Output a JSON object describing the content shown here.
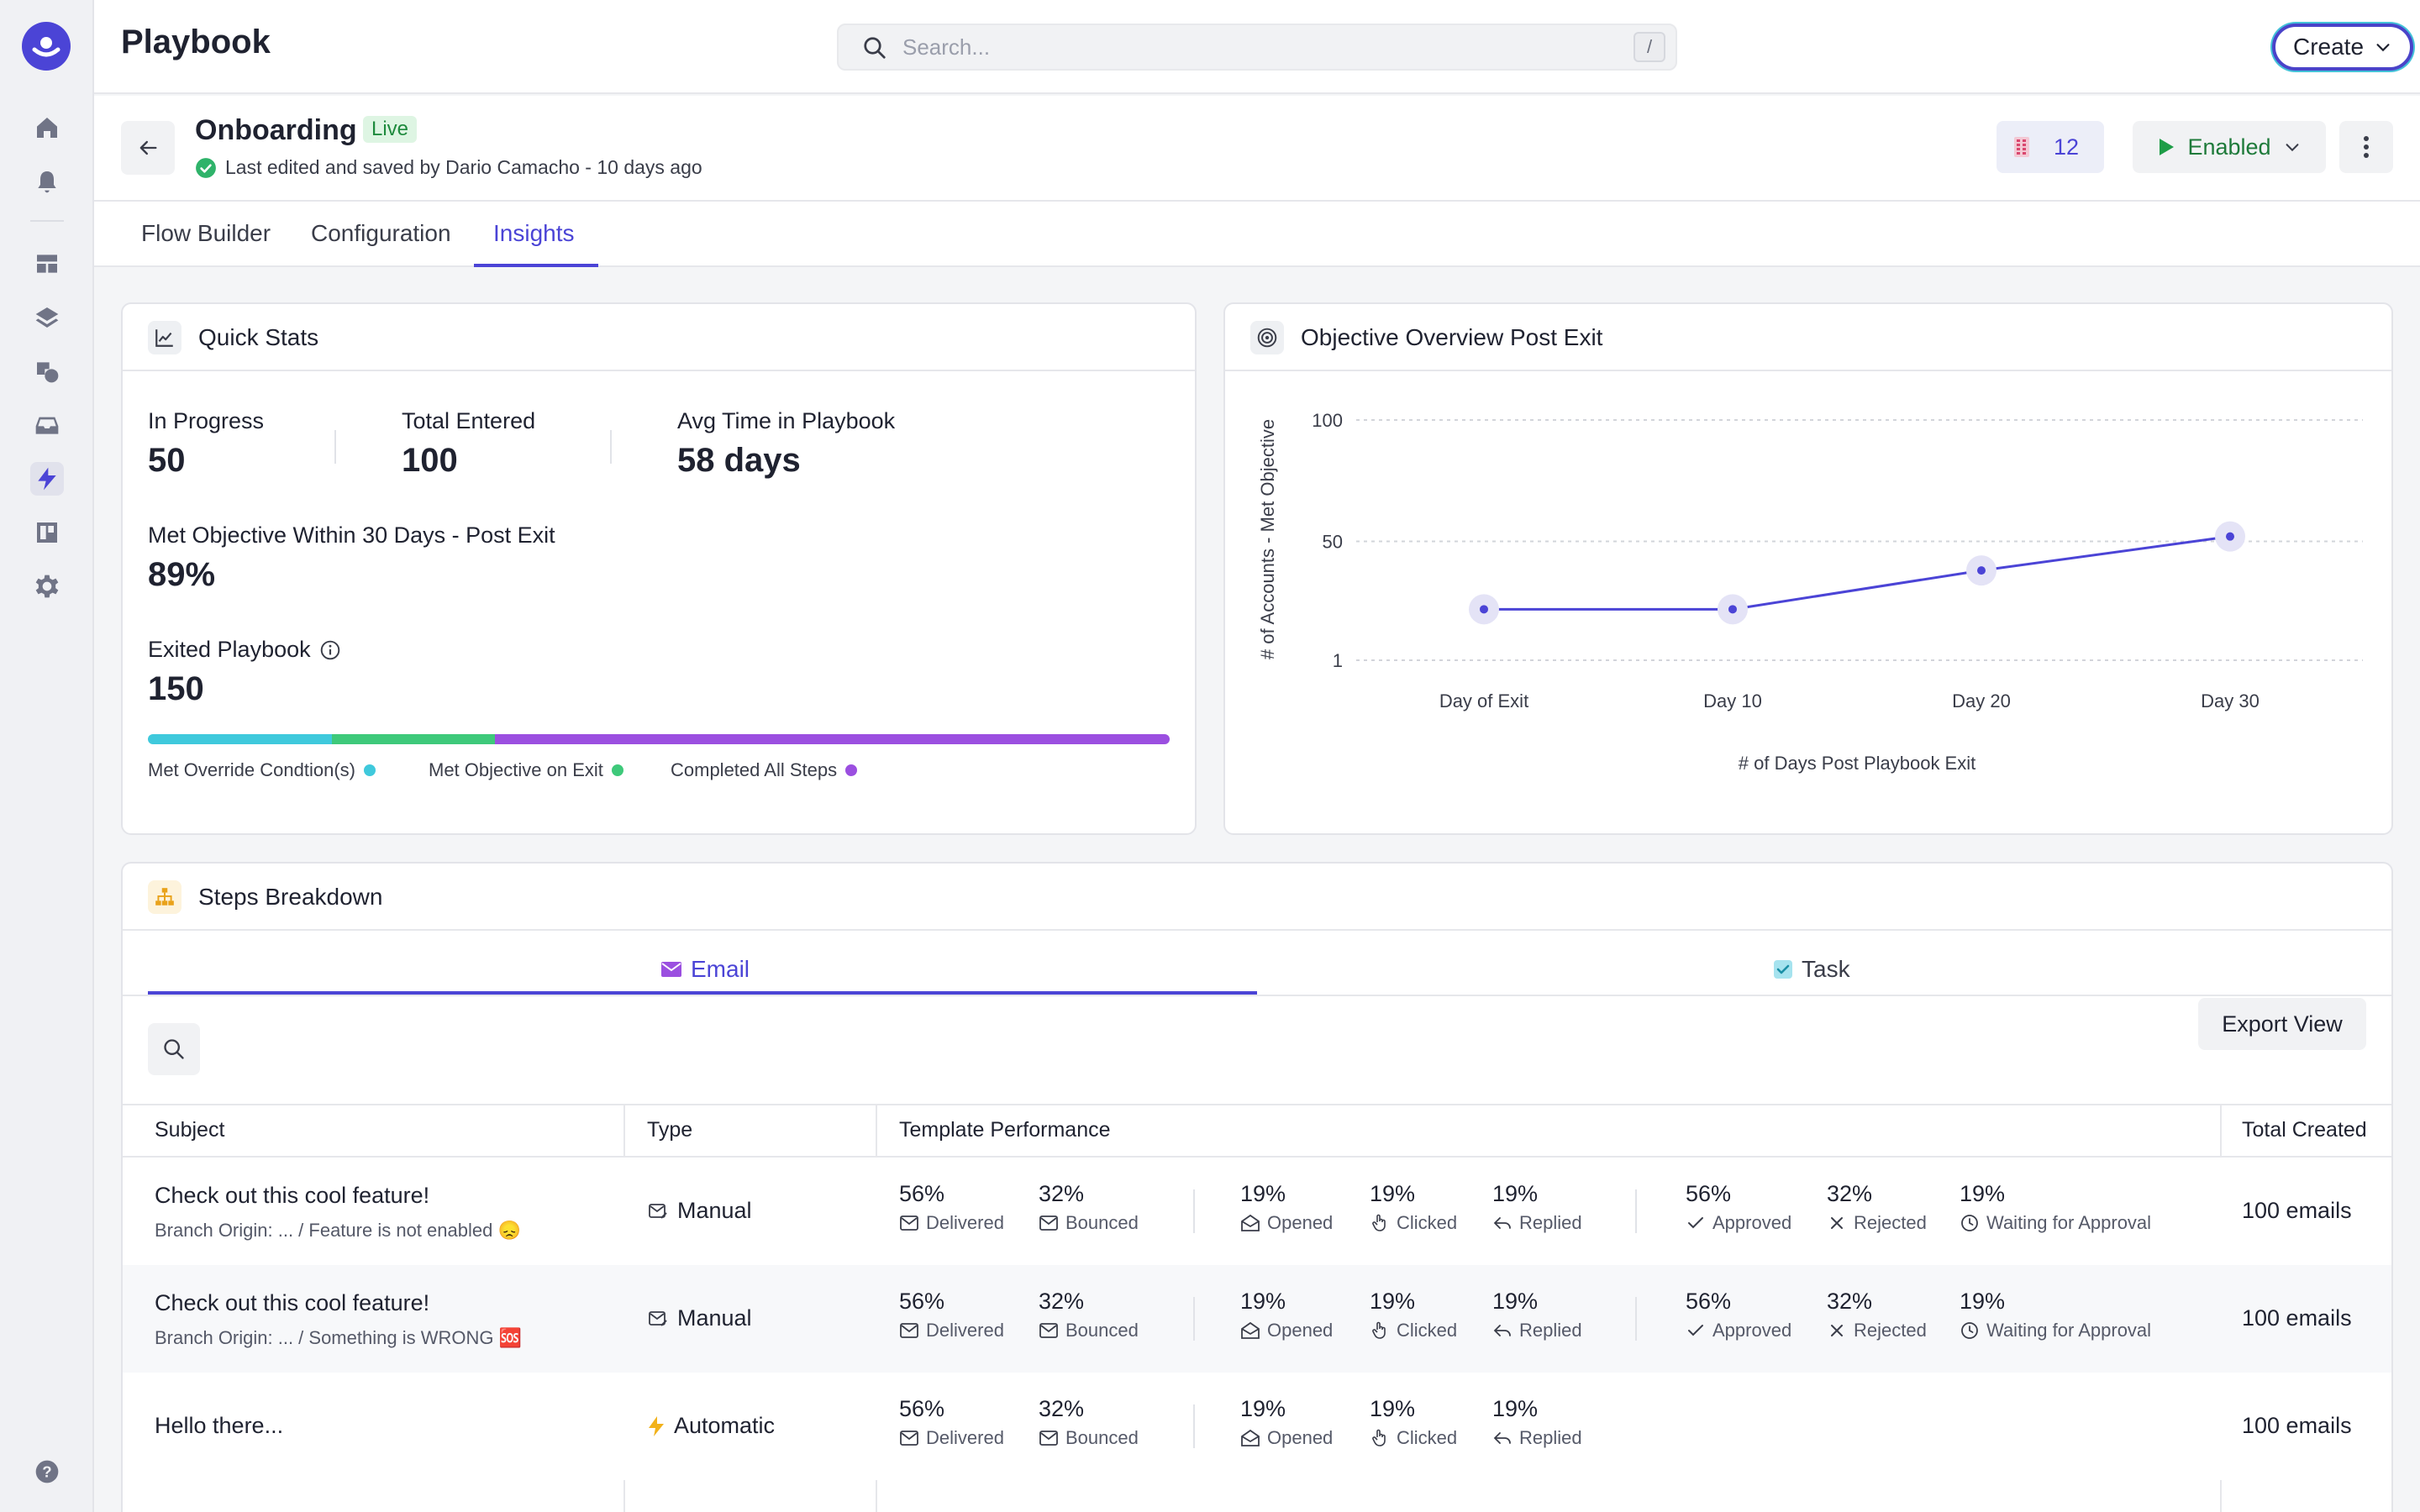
{
  "app": {
    "title": "Playbook"
  },
  "search": {
    "placeholder": "Search...",
    "shortcut": "/"
  },
  "header_actions": {
    "create_label": "Create"
  },
  "playbook": {
    "name": "Onboarding",
    "status_badge": "Live",
    "last_edited": "Last edited and saved by Dario Camacho - 10 days ago",
    "count": "12",
    "enabled_label": "Enabled"
  },
  "tabs": [
    {
      "label": "Flow Builder"
    },
    {
      "label": "Configuration"
    },
    {
      "label": "Insights"
    }
  ],
  "quick_stats": {
    "title": "Quick Stats",
    "in_progress_label": "In Progress",
    "in_progress_value": "50",
    "total_entered_label": "Total Entered",
    "total_entered_value": "100",
    "avg_time_label": "Avg Time in Playbook",
    "avg_time_value": "58 days",
    "met_objective_label": "Met Objective Within 30 Days - Post Exit",
    "met_objective_value": "89%",
    "exited_label": "Exited Playbook",
    "exited_value": "150",
    "bar_segments": [
      {
        "label": "Met Override Condtion(s)",
        "fraction": 0.18,
        "color": "#3fc9dc"
      },
      {
        "label": "Met Objective on Exit",
        "fraction": 0.16,
        "color": "#3ec97a"
      },
      {
        "label": "Completed All Steps",
        "fraction": 0.66,
        "color": "#9b4fe0"
      }
    ]
  },
  "chart_data": {
    "type": "line",
    "title": "Objective Overview Post Exit",
    "xlabel": "# of Days Post Playbook Exit",
    "ylabel": "# of Accounts - Met Objective",
    "categories": [
      "Day of Exit",
      "Day 10",
      "Day 20",
      "Day 30"
    ],
    "series": [
      {
        "values": [
          22,
          22,
          38,
          52
        ]
      }
    ],
    "yticks": [
      "100",
      "50",
      "1"
    ],
    "ylim": [
      1,
      100
    ],
    "grid": true,
    "color": "#4b44d6"
  },
  "steps": {
    "title": "Steps Breakdown",
    "tab_email": "Email",
    "tab_task": "Task",
    "export_label": "Export View",
    "columns": [
      "Subject",
      "Type",
      "Template Performance",
      "Total Created"
    ],
    "rows": [
      {
        "subject": "Check out this cool feature!",
        "origin": "Branch Origin: ... / Feature is not enabled 😞",
        "type": "Manual",
        "delivered": "56%",
        "bounced": "32%",
        "opened": "19%",
        "clicked": "19%",
        "replied": "19%",
        "approved": "56%",
        "rejected": "32%",
        "waiting": "19%",
        "total": "100 emails"
      },
      {
        "subject": "Check out this cool feature!",
        "origin": "Branch Origin: ... / Something is WRONG 🆘",
        "type": "Manual",
        "delivered": "56%",
        "bounced": "32%",
        "opened": "19%",
        "clicked": "19%",
        "replied": "19%",
        "approved": "56%",
        "rejected": "32%",
        "waiting": "19%",
        "total": "100 emails"
      },
      {
        "subject": "Hello there...",
        "origin": "",
        "type": "Automatic",
        "delivered": "56%",
        "bounced": "32%",
        "opened": "19%",
        "clicked": "19%",
        "replied": "19%",
        "total": "100 emails"
      }
    ],
    "metric_labels": {
      "delivered": "Delivered",
      "bounced": "Bounced",
      "opened": "Opened",
      "clicked": "Clicked",
      "replied": "Replied",
      "approved": "Approved",
      "rejected": "Rejected",
      "waiting": "Waiting for Approval"
    }
  }
}
